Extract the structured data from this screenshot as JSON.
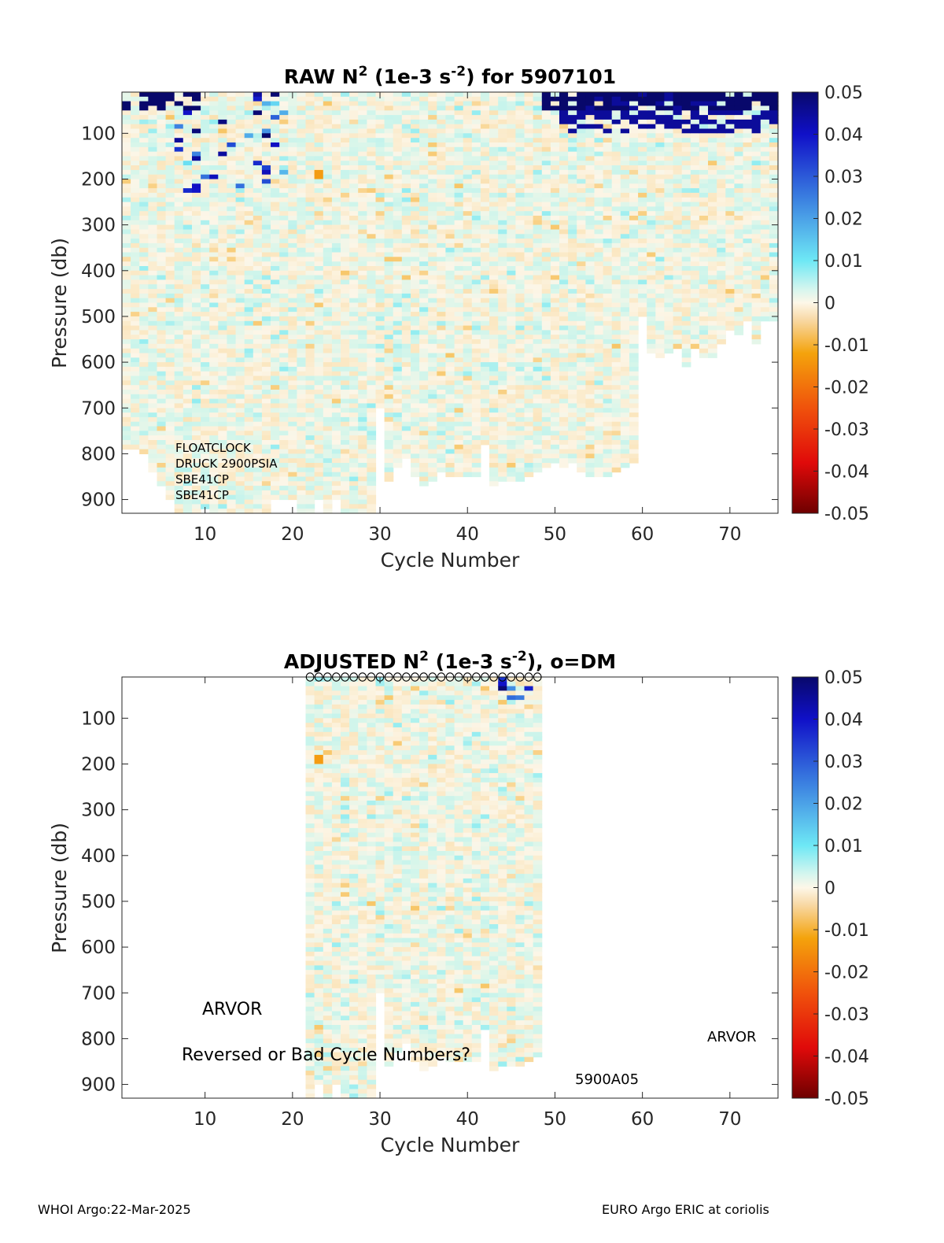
{
  "chart_data": [
    {
      "type": "heatmap",
      "title": "RAW N² (1e-3 s⁻²) for 5907101",
      "title_parts": {
        "pre": "RAW N",
        "sup1": "2",
        "mid": " (1e-3 s",
        "sup2": "-2",
        "post": ") for 5907101"
      },
      "xlabel": "Cycle Number",
      "ylabel": "Pressure (db)",
      "xlim": [
        1,
        75
      ],
      "ylim": [
        930,
        10
      ],
      "y_reversed": true,
      "xticks": [
        10,
        20,
        30,
        40,
        50,
        60,
        70
      ],
      "yticks": [
        100,
        200,
        300,
        400,
        500,
        600,
        700,
        800,
        900
      ],
      "colorbar": {
        "min": -0.05,
        "max": 0.05,
        "ticks": [
          "0.05",
          "0.04",
          "0.03",
          "0.02",
          "0.01",
          "0",
          "-0.01",
          "-0.02",
          "-0.03",
          "-0.04",
          "-0.05"
        ]
      },
      "annotations": [
        "FLOATCLOCK",
        "DRUCK 2900PSIA",
        "SBE41CP",
        "SBE41CP"
      ],
      "profile_bottom_pressure_db": [
        790,
        790,
        800,
        840,
        870,
        900,
        930,
        930,
        930,
        920,
        930,
        930,
        930,
        930,
        930,
        930,
        930,
        900,
        900,
        900,
        930,
        930,
        900,
        930,
        900,
        930,
        930,
        930,
        930,
        700,
        860,
        830,
        810,
        850,
        870,
        860,
        840,
        850,
        850,
        850,
        850,
        780,
        870,
        860,
        860,
        860,
        850,
        840,
        830,
        820,
        830,
        820,
        840,
        850,
        850,
        850,
        840,
        830,
        820,
        500,
        580,
        590,
        580,
        570,
        610,
        570,
        590,
        590,
        560,
        530,
        540,
        510,
        560,
        510,
        510
      ],
      "near_surface_max_N2": 0.05,
      "typical_interior_N2": [
        -0.002,
        0.003
      ]
    },
    {
      "type": "heatmap",
      "title": "ADJUSTED N² (1e-3 s⁻²), o=DM",
      "title_parts": {
        "pre": "ADJUSTED N",
        "sup1": "2",
        "mid": " (1e-3 s",
        "sup2": "-2",
        "post": "), o=DM"
      },
      "xlabel": "Cycle Number",
      "ylabel": "Pressure (db)",
      "xlim": [
        1,
        75
      ],
      "ylim": [
        930,
        10
      ],
      "y_reversed": true,
      "xticks": [
        10,
        20,
        30,
        40,
        50,
        60,
        70
      ],
      "yticks": [
        100,
        200,
        300,
        400,
        500,
        600,
        700,
        800,
        900
      ],
      "colorbar": {
        "min": -0.05,
        "max": 0.05,
        "ticks": [
          "0.05",
          "0.04",
          "0.03",
          "0.02",
          "0.01",
          "0",
          "-0.01",
          "-0.02",
          "-0.03",
          "-0.04",
          "-0.05"
        ]
      },
      "data_cycle_range": [
        22,
        48
      ],
      "dm_marker": "o",
      "dm_cycles": [
        22,
        23,
        24,
        25,
        26,
        27,
        28,
        29,
        30,
        31,
        32,
        33,
        34,
        35,
        36,
        37,
        38,
        39,
        40,
        41,
        42,
        43,
        44,
        45,
        46,
        47,
        48
      ],
      "annotations": [
        "ARVOR",
        "Reversed or Bad Cycle Numbers?",
        "ARVOR",
        "5900A05"
      ]
    }
  ],
  "footer": {
    "left": "WHOI Argo:22-Mar-2025",
    "right": "EURO Argo ERIC at coriolis"
  }
}
